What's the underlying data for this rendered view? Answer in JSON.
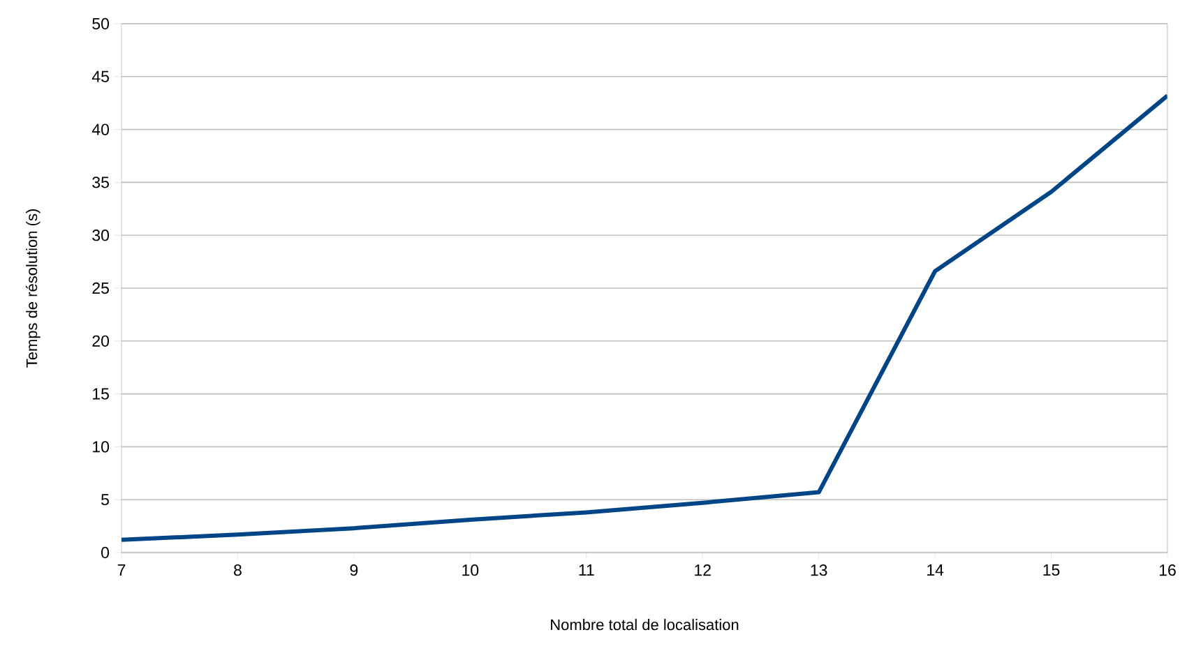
{
  "chart_data": {
    "type": "line",
    "xlabel": "Nombre total de localisation",
    "ylabel": "Temps de résolution (s)",
    "x": [
      7,
      8,
      9,
      10,
      11,
      12,
      13,
      14,
      15,
      16
    ],
    "series": [
      {
        "color": "#004586",
        "values": [
          1.2,
          1.7,
          2.3,
          3.1,
          3.8,
          4.7,
          5.7,
          26.6,
          34.1,
          43.2
        ]
      }
    ],
    "xlim": [
      7,
      16
    ],
    "ylim": [
      0,
      50
    ],
    "xticks": [
      7,
      8,
      9,
      10,
      11,
      12,
      13,
      14,
      15,
      16
    ],
    "yticks": [
      0,
      5,
      10,
      15,
      20,
      25,
      30,
      35,
      40,
      45,
      50
    ],
    "grid": "y",
    "marker": "none",
    "line_style": "solid"
  }
}
